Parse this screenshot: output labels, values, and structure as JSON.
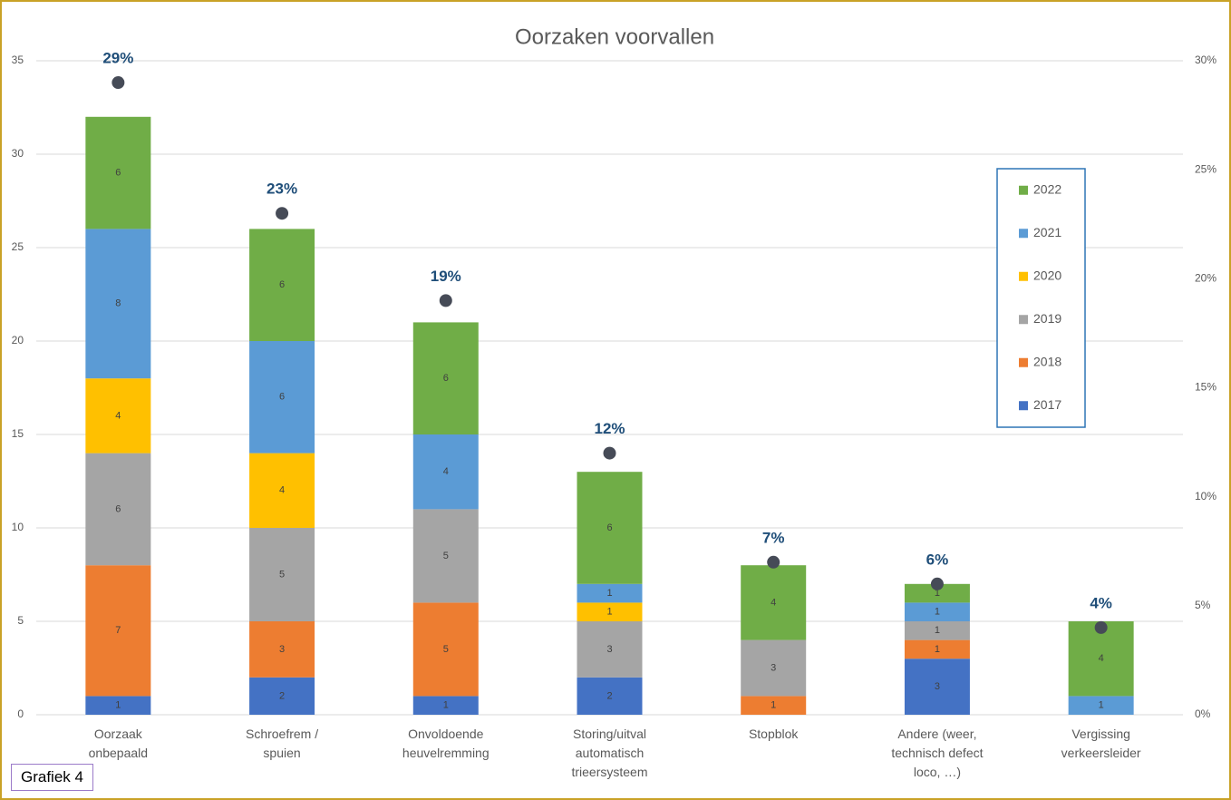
{
  "chart_data": {
    "type": "stacked_bar",
    "title": "Oorzaken voorvallen",
    "categories": [
      "Oorzaak onbepaald",
      "Schroefrem / spuien",
      "Onvoldoende heuvelremming",
      "Storing/uitval automatisch trieersysteem",
      "Stopblok",
      "Andere (weer, technisch defect loco, …)",
      "Vergissing verkeersleider"
    ],
    "series": [
      {
        "name": "2017",
        "color": "#4472c4",
        "values": [
          1,
          2,
          1,
          2,
          null,
          3,
          null
        ]
      },
      {
        "name": "2018",
        "color": "#ed7d31",
        "values": [
          7,
          3,
          5,
          null,
          1,
          1,
          null
        ]
      },
      {
        "name": "2019",
        "color": "#a5a5a5",
        "values": [
          6,
          5,
          5,
          3,
          3,
          1,
          null
        ]
      },
      {
        "name": "2020",
        "color": "#ffc000",
        "values": [
          4,
          4,
          null,
          1,
          null,
          null,
          null
        ]
      },
      {
        "name": "2021",
        "color": "#5b9bd5",
        "values": [
          8,
          6,
          4,
          1,
          null,
          1,
          1
        ]
      },
      {
        "name": "2022",
        "color": "#70ad47",
        "values": [
          6,
          6,
          6,
          6,
          4,
          1,
          4
        ]
      }
    ],
    "share": {
      "color": "#464b57",
      "label_color": "#1f4e79",
      "axis": "y2",
      "values": [
        29,
        23,
        19,
        12,
        7,
        6,
        4
      ],
      "value_labels": [
        "29%",
        "23%",
        "19%",
        "12%",
        "7%",
        "6%",
        "4%"
      ]
    },
    "ylim": [
      0,
      35
    ],
    "yticks": [
      0,
      5,
      10,
      15,
      20,
      25,
      30,
      35
    ],
    "y2lim": [
      0,
      30
    ],
    "y2ticks": [
      {
        "value": 0,
        "label": "0%"
      },
      {
        "value": 5,
        "label": "5%"
      },
      {
        "value": 10,
        "label": "10%"
      },
      {
        "value": 15,
        "label": "15%"
      },
      {
        "value": 20,
        "label": "20%"
      },
      {
        "value": 25,
        "label": "25%"
      },
      {
        "value": 30,
        "label": "30%"
      }
    ],
    "grid": true,
    "legend": "right",
    "annotation": "Grafiek 4"
  }
}
